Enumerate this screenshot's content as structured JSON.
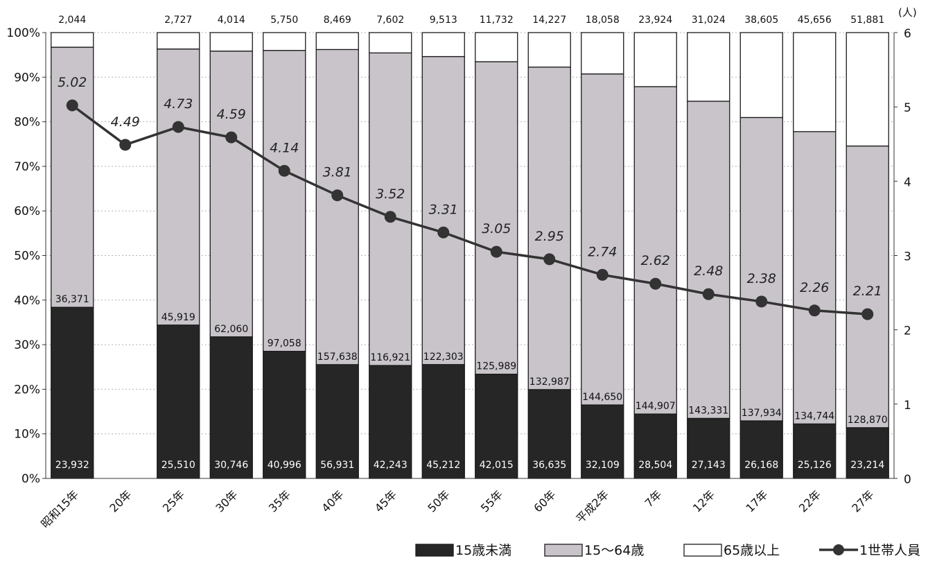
{
  "chart_data": {
    "type": "bar",
    "stacked": "percent",
    "categories": [
      "昭和15年",
      "20年",
      "25年",
      "30年",
      "35年",
      "40年",
      "45年",
      "50年",
      "55年",
      "60年",
      "平成2年",
      "7年",
      "12年",
      "17年",
      "22年",
      "27年"
    ],
    "y_left_ticks": [
      "0%",
      "10%",
      "20%",
      "30%",
      "40%",
      "50%",
      "60%",
      "70%",
      "80%",
      "90%",
      "100%"
    ],
    "y_right_ticks": [
      "0",
      "1",
      "2",
      "3",
      "4",
      "5",
      "6"
    ],
    "y_right_unit": "(人)",
    "ylim_left": [
      0,
      100
    ],
    "ylim_right": [
      0,
      6
    ],
    "series": [
      {
        "name": "15歳未満",
        "color": "#262626",
        "label_color": "#ffffff",
        "values": [
          23932,
          null,
          25510,
          30746,
          40996,
          56931,
          42243,
          45212,
          42015,
          36635,
          32109,
          28504,
          27143,
          26168,
          25126,
          23214
        ],
        "labels": [
          "23,932",
          "",
          "25,510",
          "30,746",
          "40,996",
          "56,931",
          "42,243",
          "45,212",
          "42,015",
          "36,635",
          "32,109",
          "28,504",
          "27,143",
          "26,168",
          "25,126",
          "23,214"
        ]
      },
      {
        "name": "15～64歳",
        "color": "#c8c4ca",
        "label_color": "#111111",
        "values": [
          36371,
          null,
          45919,
          62060,
          97058,
          157638,
          116921,
          122303,
          125989,
          132987,
          144650,
          144907,
          143331,
          137934,
          134744,
          128870
        ],
        "labels": [
          "36,371",
          "",
          "45,919",
          "62,060",
          "97,058",
          "157,638",
          "116,921",
          "122,303",
          "125,989",
          "132,987",
          "144,650",
          "144,907",
          "143,331",
          "137,934",
          "134,744",
          "128,870"
        ]
      },
      {
        "name": "65歳以上",
        "color": "#ffffff",
        "label_color": "#111111",
        "values": [
          2044,
          null,
          2727,
          4014,
          5750,
          8469,
          7602,
          9513,
          11732,
          14227,
          18058,
          23924,
          31024,
          38605,
          45656,
          51881
        ],
        "labels": [
          "2,044",
          "",
          "2,727",
          "4,014",
          "5,750",
          "8,469",
          "7,602",
          "9,513",
          "11,732",
          "14,227",
          "18,058",
          "23,924",
          "31,024",
          "38,605",
          "45,656",
          "51,881"
        ]
      }
    ],
    "line_series": {
      "name": "1世帯人員",
      "axis": "right",
      "color": "#333333",
      "values": [
        5.02,
        4.49,
        4.73,
        4.59,
        4.14,
        3.81,
        3.52,
        3.31,
        3.05,
        2.95,
        2.74,
        2.62,
        2.48,
        2.38,
        2.26,
        2.21
      ],
      "labels": [
        "5.02",
        "4.49",
        "4.73",
        "4.59",
        "4.14",
        "3.81",
        "3.52",
        "3.31",
        "3.05",
        "2.95",
        "2.74",
        "2.62",
        "2.48",
        "2.38",
        "2.26",
        "2.21"
      ]
    },
    "legend_position": "bottom-right",
    "grid": "horizontal-dotted"
  }
}
